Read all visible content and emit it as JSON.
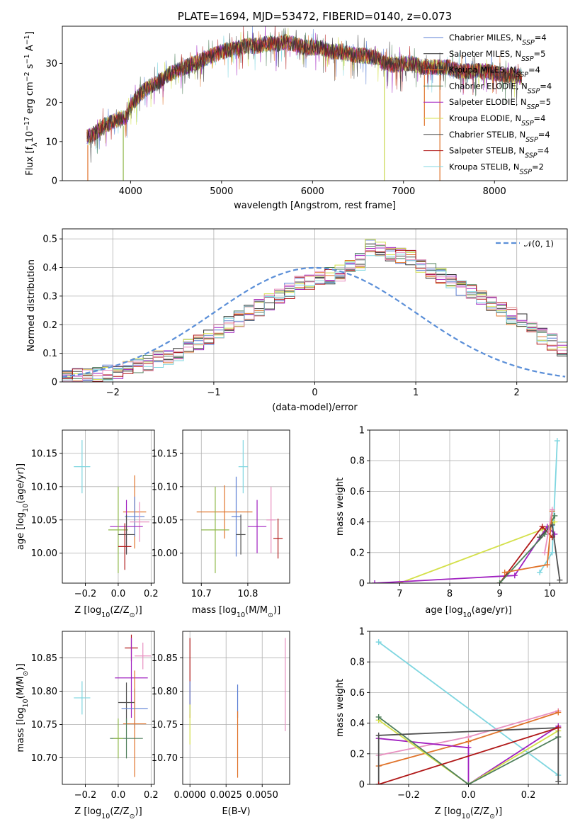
{
  "chart_data": [
    {
      "id": "spectrum",
      "type": "line",
      "title": "PLATE=1694, MJD=53472, FIBERID=0140, z=0.073",
      "xlabel": "wavelength [Angstrom, rest frame]",
      "ylabel": "Flux [f",
      "ylabel_sub": "λ",
      "ylabel_rest": "10",
      "ylabel_sup": "−17",
      "ylabel_tail": " erg cm",
      "ylabel_sup2": "−2",
      "ylabel_tail2": " s",
      "ylabel_sup3": "−1",
      "ylabel_tail3": " A",
      "ylabel_sup4": "−1",
      "ylabel_end": "]",
      "xlim": [
        3250,
        8800
      ],
      "ylim": [
        0,
        39.5
      ],
      "xticks": [
        4000,
        5000,
        6000,
        7000,
        8000
      ],
      "yticks": [
        0,
        10,
        20,
        30
      ],
      "grid": false,
      "legend": "top-right",
      "envelope": [
        [
          3520,
          11
        ],
        [
          3600,
          12
        ],
        [
          3700,
          14
        ],
        [
          3800,
          15
        ],
        [
          3900,
          16
        ],
        [
          3950,
          16
        ],
        [
          4000,
          19
        ],
        [
          4100,
          22
        ],
        [
          4200,
          24
        ],
        [
          4300,
          25
        ],
        [
          4400,
          27
        ],
        [
          4500,
          28
        ],
        [
          4600,
          29
        ],
        [
          4700,
          30
        ],
        [
          4800,
          31
        ],
        [
          4900,
          32
        ],
        [
          5000,
          33
        ],
        [
          5100,
          33.5
        ],
        [
          5200,
          34
        ],
        [
          5300,
          34.5
        ],
        [
          5400,
          34.5
        ],
        [
          5500,
          35
        ],
        [
          5600,
          35
        ],
        [
          5700,
          35.5
        ],
        [
          5800,
          35
        ],
        [
          5900,
          34
        ],
        [
          6000,
          34
        ],
        [
          6100,
          34
        ],
        [
          6200,
          33
        ],
        [
          6300,
          33
        ],
        [
          6400,
          32.5
        ],
        [
          6500,
          32
        ],
        [
          6600,
          32
        ],
        [
          6700,
          31.5
        ],
        [
          6800,
          30
        ],
        [
          6900,
          29.5
        ],
        [
          7000,
          30
        ],
        [
          7100,
          30
        ],
        [
          7200,
          29
        ],
        [
          7300,
          29
        ],
        [
          7400,
          29
        ],
        [
          7500,
          29
        ],
        [
          7600,
          28
        ],
        [
          7700,
          28
        ],
        [
          7800,
          28
        ],
        [
          7900,
          28
        ],
        [
          8000,
          27.5
        ],
        [
          8100,
          27
        ],
        [
          8200,
          27
        ],
        [
          8300,
          26.5
        ]
      ],
      "spikes": [
        {
          "x": 3530,
          "ymin": 0,
          "color": "#e0732a"
        },
        {
          "x": 3920,
          "ymin": 0,
          "color": "#8fb84a"
        },
        {
          "x": 6790,
          "ymin": 0,
          "color": "#c8d84e"
        },
        {
          "x": 7400,
          "ymin": 0,
          "color": "#e0732a"
        },
        {
          "x": 7230,
          "ymin": 14,
          "color": "#e0732a"
        }
      ],
      "series": [
        {
          "name": "Chabrier MILES, N",
          "sub": "SSP",
          "tail": "=4",
          "color": "#5b7fd4"
        },
        {
          "name": "Salpeter MILES, N",
          "sub": "SSP",
          "tail": "=5",
          "color": "#2f2f2f"
        },
        {
          "name": "Kroupa MILES, N",
          "sub": "SSP",
          "tail": "=4",
          "color": "#e0732a"
        },
        {
          "name": "Chabrier ELODIE, N",
          "sub": "SSP",
          "tail": "=4",
          "color": "#4f7f5b"
        },
        {
          "name": "Salpeter ELODIE, N",
          "sub": "SSP",
          "tail": "=5",
          "color": "#a020c0"
        },
        {
          "name": "Kroupa ELODIE, N",
          "sub": "SSP",
          "tail": "=4",
          "color": "#d4e04a"
        },
        {
          "name": "Chabrier STELIB, N",
          "sub": "SSP",
          "tail": "=4",
          "color": "#505050"
        },
        {
          "name": "Salpeter STELIB, N",
          "sub": "SSP",
          "tail": "=4",
          "color": "#b01818"
        },
        {
          "name": "Kroupa STELIB, N",
          "sub": "SSP",
          "tail": "=2",
          "color": "#7fd6e0"
        }
      ]
    },
    {
      "id": "residuals",
      "type": "line",
      "xlabel": "(data-model)/error",
      "ylabel": "Normed distribution",
      "xlim": [
        -2.5,
        2.5
      ],
      "ylim": [
        0,
        0.535
      ],
      "xticks": [
        -2,
        -1,
        0,
        1,
        2
      ],
      "yticks": [
        0.0,
        0.1,
        0.2,
        0.3,
        0.4,
        0.5
      ],
      "grid": true,
      "legend": "top-right",
      "legend_label": "𝒩(0, 1)",
      "legend_color": "#5b8fd8",
      "bin_width": 0.1,
      "bin_start": -2.5,
      "base_hist": [
        0.015,
        0.02,
        0.025,
        0.03,
        0.035,
        0.04,
        0.05,
        0.06,
        0.065,
        0.08,
        0.09,
        0.1,
        0.12,
        0.14,
        0.16,
        0.18,
        0.2,
        0.22,
        0.24,
        0.26,
        0.28,
        0.3,
        0.32,
        0.34,
        0.35,
        0.36,
        0.37,
        0.38,
        0.4,
        0.42,
        0.47,
        0.46,
        0.45,
        0.44,
        0.43,
        0.41,
        0.39,
        0.37,
        0.35,
        0.33,
        0.31,
        0.29,
        0.27,
        0.25,
        0.23,
        0.21,
        0.18,
        0.16,
        0.14,
        0.12,
        0.1,
        0.09,
        0.075,
        0.065,
        0.055,
        0.045,
        0.035,
        0.03,
        0.025,
        0.02
      ],
      "colors": [
        "#5b7fd4",
        "#2f2f2f",
        "#e0732a",
        "#4f7f5b",
        "#a020c0",
        "#d4e04a",
        "#505050",
        "#b01818",
        "#7fd6e0",
        "#e890c0"
      ]
    },
    {
      "id": "age-vs-Z",
      "type": "scatter",
      "xlabel": "Z [log",
      "xlabel_sub": "10",
      "xlabel_tail": "(Z/Z",
      "xlabel_sub2": "⊙",
      "xlabel_end": ")]",
      "ylabel": "age  [log",
      "ylabel_sub": "10",
      "ylabel_tail": "(age/yr)]",
      "xlim": [
        -0.34,
        0.22
      ],
      "ylim": [
        9.955,
        10.185
      ],
      "xticks": [
        -0.2,
        0.0,
        0.2
      ],
      "xticklabels": [
        "−0.2",
        "0.0",
        "0.2"
      ],
      "yticks": [
        10.0,
        10.05,
        10.1,
        10.15
      ],
      "yticklabels": [
        "10.00",
        "10.05",
        "10.10",
        "10.15"
      ],
      "grid": true,
      "points": [
        {
          "x": -0.22,
          "y": 10.13,
          "xerr": 0.05,
          "yerr": 0.04,
          "color": "#7fd6e0"
        },
        {
          "x": 0.1,
          "y": 10.062,
          "xerr": 0.07,
          "yerr": 0.055,
          "color": "#e0732a"
        },
        {
          "x": 0.1,
          "y": 10.055,
          "xerr": 0.06,
          "yerr": 0.03,
          "color": "#5b7fd4"
        },
        {
          "x": 0.13,
          "y": 10.047,
          "xerr": 0.06,
          "yerr": 0.03,
          "color": "#e890c0"
        },
        {
          "x": 0.05,
          "y": 10.04,
          "xerr": 0.1,
          "yerr": 0.04,
          "color": "#a020c0"
        },
        {
          "x": 0.0,
          "y": 10.035,
          "xerr": 0.06,
          "yerr": 0.065,
          "color": "#8fb84a"
        },
        {
          "x": 0.05,
          "y": 10.028,
          "xerr": 0.05,
          "yerr": 0.03,
          "color": "#505050"
        },
        {
          "x": 0.04,
          "y": 10.01,
          "xerr": 0.04,
          "yerr": 0.035,
          "color": "#b01818"
        }
      ]
    },
    {
      "id": "age-vs-mass",
      "type": "scatter",
      "xlabel": "mass [log",
      "xlabel_sub": "10",
      "xlabel_tail": "(M/M",
      "xlabel_sub2": "⊙",
      "xlabel_end": ")]",
      "xlim": [
        10.66,
        10.89
      ],
      "ylim": [
        9.955,
        10.185
      ],
      "xticks": [
        10.7,
        10.8
      ],
      "xticklabels": [
        "10.7",
        "10.8"
      ],
      "yticks": [
        10.0,
        10.05,
        10.1,
        10.15
      ],
      "yticklabels": [
        "10.00",
        "10.05",
        "10.10",
        "10.15"
      ],
      "grid": true,
      "points": [
        {
          "x": 10.79,
          "y": 10.13,
          "xerr": 0.01,
          "yerr": 0.04,
          "color": "#7fd6e0"
        },
        {
          "x": 10.75,
          "y": 10.062,
          "xerr": 0.06,
          "yerr": 0.04,
          "color": "#e0732a"
        },
        {
          "x": 10.775,
          "y": 10.055,
          "xerr": 0.01,
          "yerr": 0.06,
          "color": "#5b7fd4"
        },
        {
          "x": 10.85,
          "y": 10.05,
          "xerr": 0.01,
          "yerr": 0.05,
          "color": "#e890c0"
        },
        {
          "x": 10.82,
          "y": 10.04,
          "xerr": 0.02,
          "yerr": 0.04,
          "color": "#a020c0"
        },
        {
          "x": 10.73,
          "y": 10.035,
          "xerr": 0.03,
          "yerr": 0.065,
          "color": "#8fb84a"
        },
        {
          "x": 10.785,
          "y": 10.028,
          "xerr": 0.01,
          "yerr": 0.03,
          "color": "#505050"
        },
        {
          "x": 10.865,
          "y": 10.022,
          "xerr": 0.01,
          "yerr": 0.03,
          "color": "#b01818"
        }
      ]
    },
    {
      "id": "weight-vs-age",
      "type": "line",
      "xlabel": "age  [log",
      "xlabel_sub": "10",
      "xlabel_tail": "(age/yr)]",
      "ylabel": "mass weight",
      "xlim": [
        6.4,
        10.35
      ],
      "ylim": [
        0,
        1.0
      ],
      "xticks": [
        7,
        8,
        9,
        10
      ],
      "yticks": [
        0.0,
        0.2,
        0.4,
        0.6,
        0.8,
        1.0
      ],
      "grid": true,
      "series": [
        {
          "color": "#7fd6e0",
          "points": [
            [
              9.8,
              0.07
            ],
            [
              10.05,
              0.2
            ],
            [
              10.15,
              0.93
            ]
          ]
        },
        {
          "color": "#d4e04a",
          "points": [
            [
              7.0,
              0.0
            ],
            [
              9.85,
              0.35
            ],
            [
              10.1,
              0.4
            ]
          ]
        },
        {
          "color": "#a020c0",
          "points": [
            [
              6.5,
              0.0
            ],
            [
              9.3,
              0.05
            ],
            [
              9.95,
              0.37
            ],
            [
              10.1,
              0.32
            ]
          ]
        },
        {
          "color": "#b01818",
          "points": [
            [
              9.0,
              0.0
            ],
            [
              9.85,
              0.37
            ],
            [
              10.05,
              0.3
            ]
          ]
        },
        {
          "color": "#4f7f5b",
          "points": [
            [
              9.0,
              0.0
            ],
            [
              9.9,
              0.32
            ],
            [
              10.1,
              0.44
            ]
          ]
        },
        {
          "color": "#e0732a",
          "points": [
            [
              9.1,
              0.07
            ],
            [
              9.95,
              0.12
            ],
            [
              10.05,
              0.47
            ]
          ]
        },
        {
          "color": "#505050",
          "points": [
            [
              9.8,
              0.3
            ],
            [
              10.05,
              0.38
            ],
            [
              10.2,
              0.02
            ]
          ]
        },
        {
          "color": "#e890c0",
          "points": [
            [
              9.9,
              0.2
            ],
            [
              10.05,
              0.48
            ]
          ]
        }
      ]
    },
    {
      "id": "mass-vs-Z",
      "type": "scatter",
      "xlabel": "Z [log",
      "xlabel_sub": "10",
      "xlabel_tail": "(Z/Z",
      "xlabel_sub2": "⊙",
      "xlabel_end": ")]",
      "ylabel": "mass [log",
      "ylabel_sub": "10",
      "ylabel_tail": "(M/M",
      "ylabel_sub2": "⊙",
      "ylabel_end": ")]",
      "xlim": [
        -0.34,
        0.22
      ],
      "ylim": [
        10.66,
        10.89
      ],
      "xticks": [
        -0.2,
        0.0,
        0.2
      ],
      "xticklabels": [
        "−0.2",
        "0.0",
        "0.2"
      ],
      "yticks": [
        10.7,
        10.75,
        10.8,
        10.85
      ],
      "yticklabels": [
        "10.70",
        "10.75",
        "10.80",
        "10.85"
      ],
      "grid": true,
      "points": [
        {
          "x": -0.22,
          "y": 10.79,
          "xerr": 0.05,
          "yerr": 0.025,
          "color": "#7fd6e0"
        },
        {
          "x": 0.08,
          "y": 10.865,
          "xerr": 0.04,
          "yerr": 0.02,
          "color": "#b01818"
        },
        {
          "x": 0.15,
          "y": 10.853,
          "xerr": 0.05,
          "yerr": 0.02,
          "color": "#e890c0"
        },
        {
          "x": 0.08,
          "y": 10.82,
          "xerr": 0.1,
          "yerr": 0.06,
          "color": "#a020c0"
        },
        {
          "x": 0.05,
          "y": 10.783,
          "xerr": 0.05,
          "yerr": 0.03,
          "color": "#505050"
        },
        {
          "x": 0.1,
          "y": 10.774,
          "xerr": 0.08,
          "yerr": 0.03,
          "color": "#5b7fd4"
        },
        {
          "x": 0.1,
          "y": 10.751,
          "xerr": 0.07,
          "yerr": 0.08,
          "color": "#e0732a"
        },
        {
          "x": 0.05,
          "y": 10.729,
          "xerr": 0.1,
          "yerr": 0.03,
          "color": "#4f7f5b"
        },
        {
          "x": 0.0,
          "y": 10.729,
          "xerr": 0.03,
          "yerr": 0.03,
          "color": "#8fb84a"
        }
      ]
    },
    {
      "id": "mass-vs-EBV",
      "type": "scatter",
      "xlabel": "E(B-V)",
      "xlim": [
        -0.0005,
        0.0069
      ],
      "ylim": [
        10.66,
        10.89
      ],
      "xticks": [
        0.0,
        0.0025,
        0.005
      ],
      "xticklabels": [
        "0.0000",
        "0.0025",
        "0.0050"
      ],
      "yticks": [
        10.7,
        10.75,
        10.8,
        10.85
      ],
      "yticklabels": [
        "10.70",
        "10.75",
        "10.80",
        "10.85"
      ],
      "grid": true,
      "points": [
        {
          "x": 0.0,
          "y": 10.82,
          "xerr": 0,
          "yerr": 0.06,
          "color": "#b01818"
        },
        {
          "x": 0.0,
          "y": 10.79,
          "xerr": 0,
          "yerr": 0.025,
          "color": "#5b7fd4"
        },
        {
          "x": 0.0,
          "y": 10.75,
          "xerr": 0,
          "yerr": 0.03,
          "color": "#d4e04a"
        },
        {
          "x": 0.0033,
          "y": 10.785,
          "xerr": 0,
          "yerr": 0.025,
          "color": "#5b7fd4"
        },
        {
          "x": 0.0033,
          "y": 10.72,
          "xerr": 0,
          "yerr": 0.05,
          "color": "#e0732a"
        },
        {
          "x": 0.0066,
          "y": 10.81,
          "xerr": 0,
          "yerr": 0.07,
          "color": "#e890c0"
        }
      ]
    },
    {
      "id": "weight-vs-Z",
      "type": "line",
      "xlabel": "Z [log",
      "xlabel_sub": "10",
      "xlabel_tail": "(Z/Z",
      "xlabel_sub2": "⊙",
      "xlabel_end": ")]",
      "ylabel": "mass weight",
      "xlim": [
        -0.33,
        0.33
      ],
      "ylim": [
        0,
        1.0
      ],
      "xticks": [
        -0.2,
        0.0,
        0.2
      ],
      "xticklabels": [
        "−0.2",
        "0.0",
        "0.2"
      ],
      "yticks": [
        0.0,
        0.2,
        0.4,
        0.6,
        0.8,
        1.0
      ],
      "grid": true,
      "series": [
        {
          "color": "#7fd6e0",
          "points": [
            [
              -0.3,
              0.93
            ],
            [
              0.3,
              0.06
            ]
          ]
        },
        {
          "color": "#e890c0",
          "points": [
            [
              -0.3,
              0.19
            ],
            [
              0.0,
              0.31
            ],
            [
              0.3,
              0.48
            ]
          ]
        },
        {
          "color": "#e0732a",
          "points": [
            [
              -0.3,
              0.12
            ],
            [
              0.0,
              0.28
            ],
            [
              0.3,
              0.47
            ]
          ]
        },
        {
          "color": "#a020c0",
          "points": [
            [
              -0.3,
              0.3
            ],
            [
              0.0,
              0.24
            ],
            [
              0.0,
              0.0
            ],
            [
              0.3,
              0.38
            ]
          ]
        },
        {
          "color": "#d4e04a",
          "points": [
            [
              -0.3,
              0.42
            ],
            [
              0.0,
              0.0
            ],
            [
              0.3,
              0.35
            ]
          ]
        },
        {
          "color": "#4f7f5b",
          "points": [
            [
              -0.3,
              0.44
            ],
            [
              0.0,
              0.0
            ],
            [
              0.3,
              0.31
            ]
          ]
        },
        {
          "color": "#505050",
          "points": [
            [
              -0.3,
              0.0
            ],
            [
              -0.3,
              0.32
            ],
            [
              0.3,
              0.37
            ],
            [
              0.3,
              0.02
            ]
          ]
        },
        {
          "color": "#b01818",
          "points": [
            [
              -0.3,
              0.0
            ],
            [
              0.3,
              0.37
            ]
          ]
        }
      ]
    }
  ]
}
